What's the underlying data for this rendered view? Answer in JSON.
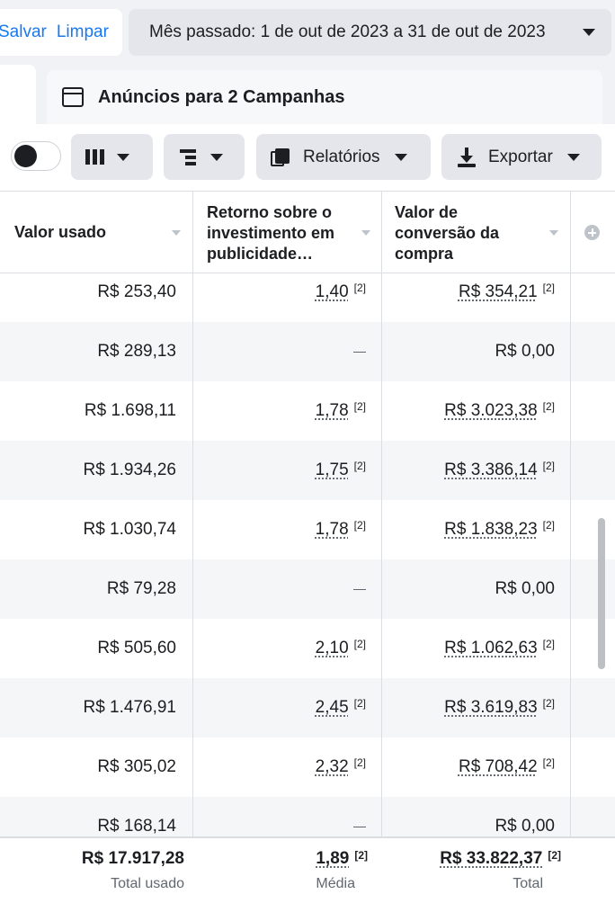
{
  "header": {
    "save_label": "Salvar",
    "clear_label": "Limpar",
    "date_range": "Mês passado: 1 de out de 2023 a 31 de out de 2023"
  },
  "panel": {
    "title": "Anúncios para 2 Campanhas"
  },
  "toolbar": {
    "reports_label": "Relatórios",
    "export_label": "Exportar",
    "toggle_on": false
  },
  "table": {
    "columns": [
      "Valor usado",
      "Retorno sobre o investimento em publicidade…",
      "Valor de conversão da compra"
    ],
    "column_lines": [
      [
        "Valor usado"
      ],
      [
        "Retorno sobre o",
        "investimento em",
        "publicidade…"
      ],
      [
        "Valor de",
        "conversão da",
        "compra"
      ]
    ],
    "footnote": "[2]",
    "dash": "—",
    "rows": [
      {
        "spent": "R$ 253,40",
        "roas": "1,40",
        "purchase_value": "R$ 354,21"
      },
      {
        "spent": "R$ 289,13",
        "roas": "—",
        "purchase_value": "R$ 0,00"
      },
      {
        "spent": "R$ 1.698,11",
        "roas": "1,78",
        "purchase_value": "R$ 3.023,38"
      },
      {
        "spent": "R$ 1.934,26",
        "roas": "1,75",
        "purchase_value": "R$ 3.386,14"
      },
      {
        "spent": "R$ 1.030,74",
        "roas": "1,78",
        "purchase_value": "R$ 1.838,23"
      },
      {
        "spent": "R$ 79,28",
        "roas": "—",
        "purchase_value": "R$ 0,00"
      },
      {
        "spent": "R$ 505,60",
        "roas": "2,10",
        "purchase_value": "R$ 1.062,63"
      },
      {
        "spent": "R$ 1.476,91",
        "roas": "2,45",
        "purchase_value": "R$ 3.619,83"
      },
      {
        "spent": "R$ 305,02",
        "roas": "2,32",
        "purchase_value": "R$ 708,42"
      },
      {
        "spent": "R$ 168,14",
        "roas": "—",
        "purchase_value": "R$ 0,00"
      }
    ],
    "totals": {
      "spent": "R$ 17.917,28",
      "spent_label": "Total usado",
      "roas": "1,89",
      "roas_label": "Média",
      "purchase_value": "R$ 33.822,37",
      "purchase_value_label": "Total"
    }
  },
  "icons": {
    "columns": "columns-icon",
    "breakdown": "breakdown-icon",
    "reports": "reports-icon",
    "export": "download-icon",
    "panel": "window-icon",
    "add_column": "add-column-icon"
  }
}
